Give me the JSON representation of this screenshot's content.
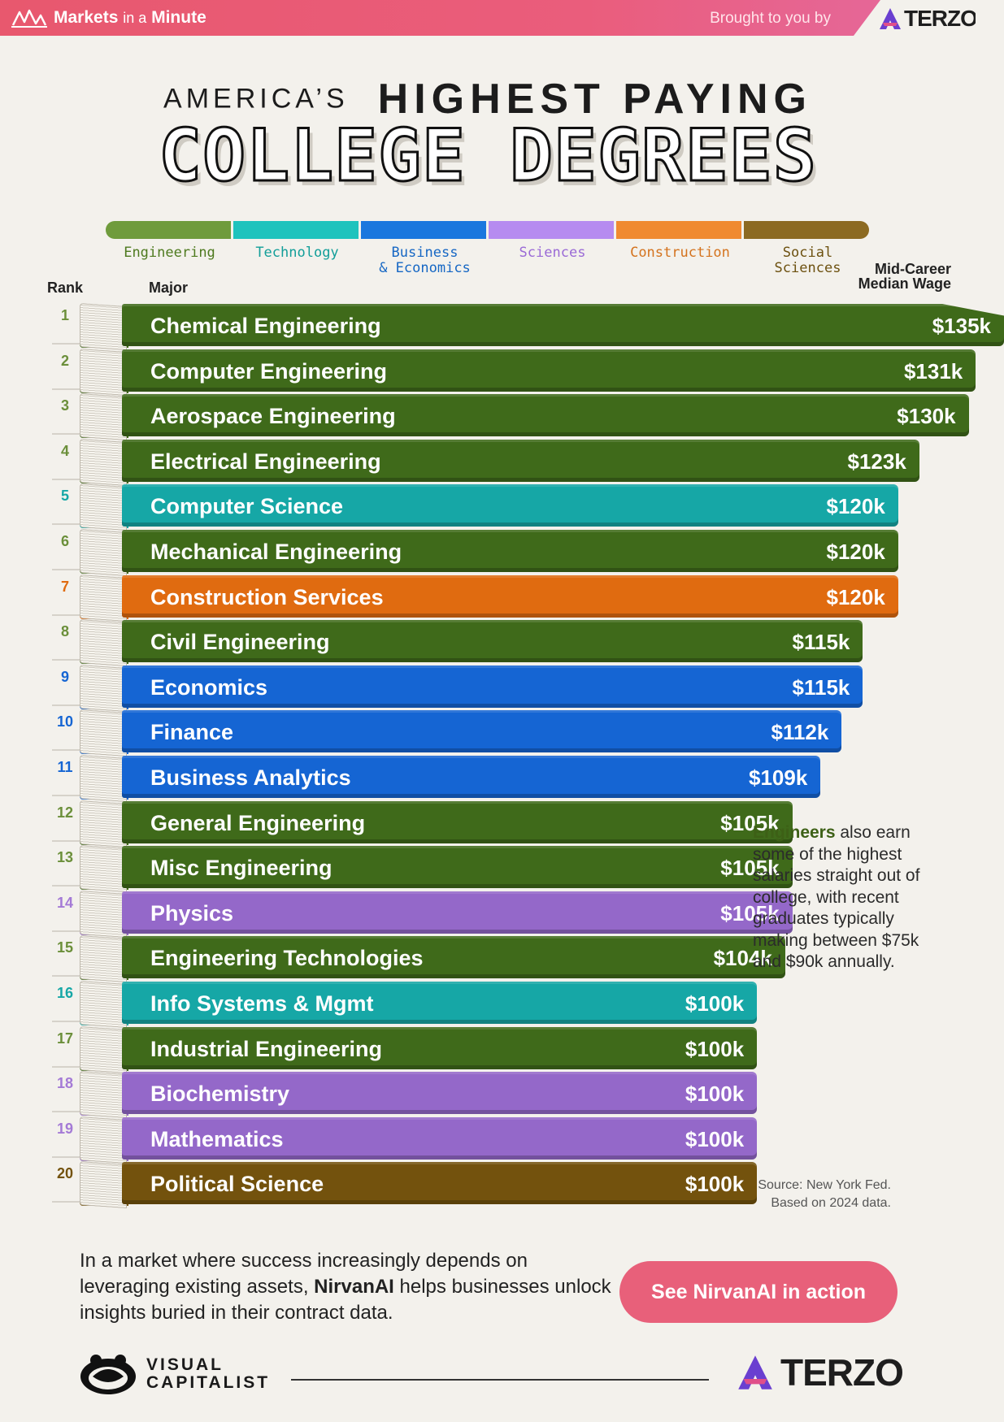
{
  "header": {
    "brand": "Markets",
    "brand_mini": "in a",
    "brand_end": "Minute",
    "brought_by": "Brought to you by",
    "sponsor": "TERZO"
  },
  "title": {
    "line1a": "AMERICA’S",
    "line1b": "HIGHEST PAYING",
    "line2": "COLLEGE DEGREES"
  },
  "legend": [
    {
      "name": "Engineering",
      "color": "#6f9b3c",
      "label_color": "#4e7a1f"
    },
    {
      "name": "Technology",
      "color": "#1ec3bd",
      "label_color": "#129e99"
    },
    {
      "name": "Business\n& Economics",
      "color": "#1a77de",
      "label_color": "#1667c4"
    },
    {
      "name": "Sciences",
      "color": "#b68bf0",
      "label_color": "#9a6ad6"
    },
    {
      "name": "Construction",
      "color": "#f08a30",
      "label_color": "#d4731e"
    },
    {
      "name": "Social\nSciences",
      "color": "#8c6a22",
      "label_color": "#6d5110"
    }
  ],
  "columns": {
    "rank": "Rank",
    "major": "Major",
    "wage": "Mid-Career Median Wage"
  },
  "chart_data": {
    "type": "bar",
    "orientation": "horizontal",
    "unit": "USD thousands",
    "categories": [
      "Chemical Engineering",
      "Computer Engineering",
      "Aerospace Engineering",
      "Electrical Engineering",
      "Computer Science",
      "Mechanical Engineering",
      "Construction Services",
      "Civil Engineering",
      "Economics",
      "Finance",
      "Business Analytics",
      "General Engineering",
      "Misc Engineering",
      "Physics",
      "Engineering Technologies",
      "Info Systems & Mgmt",
      "Industrial Engineering",
      "Biochemistry",
      "Mathematics",
      "Political Science"
    ],
    "values": [
      135,
      131,
      130,
      123,
      120,
      120,
      120,
      115,
      115,
      112,
      109,
      105,
      105,
      105,
      104,
      100,
      100,
      100,
      100,
      100
    ],
    "ranks": [
      "1",
      "2",
      "3",
      "4",
      "5",
      "6",
      "7",
      "8",
      "9",
      "10",
      "11",
      "12",
      "13",
      "14",
      "15",
      "16",
      "17",
      "18",
      "19",
      "20"
    ],
    "labels": [
      "$135k",
      "$131k",
      "$130k",
      "$123k",
      "$120k",
      "$120k",
      "$120k",
      "$115k",
      "$115k",
      "$112k",
      "$109k",
      "$105k",
      "$105k",
      "$105k",
      "$104k",
      "$100k",
      "$100k",
      "$100k",
      "$100k",
      "$100k"
    ],
    "groups": [
      "Engineering",
      "Engineering",
      "Engineering",
      "Engineering",
      "Technology",
      "Engineering",
      "Construction",
      "Engineering",
      "Business & Economics",
      "Business & Economics",
      "Business & Economics",
      "Engineering",
      "Engineering",
      "Sciences",
      "Engineering",
      "Technology",
      "Engineering",
      "Sciences",
      "Sciences",
      "Social Sciences"
    ],
    "group_colors": {
      "Engineering": "#3f6a1a",
      "Technology": "#16a7a6",
      "Business & Economics": "#1565d3",
      "Sciences": "#9468c9",
      "Construction": "#e06b10",
      "Social Sciences": "#73520d"
    },
    "rank_colors": {
      "Engineering": "#6b8f3a",
      "Technology": "#16a7a6",
      "Business & Economics": "#1565d3",
      "Sciences": "#a47ad6",
      "Construction": "#e06b10",
      "Social Sciences": "#73520d"
    }
  },
  "note": {
    "bold": "Engineers",
    "rest": " also earn some of the highest salaries straight out of college, with recent graduates typically making between $75k and $90k annually."
  },
  "source": {
    "line1": "Source: New York Fed.",
    "line2": "Based on 2024 data."
  },
  "cta": {
    "text_before": "In a market where success increasingly depends on leveraging existing assets, ",
    "text_bold": "NirvanAI",
    "text_after": " helps businesses unlock insights buried in their contract data.",
    "button": "See NirvanAI in action"
  },
  "footer": {
    "vc_line1": "VISUAL",
    "vc_line2": "CAPITALIST",
    "sponsor": "TERZO"
  }
}
